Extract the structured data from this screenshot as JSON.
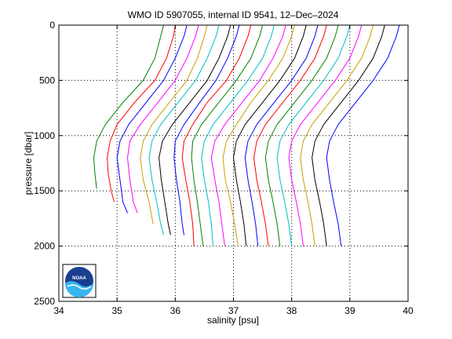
{
  "chart_data": {
    "type": "line",
    "title": "WMO ID 5907055, internal ID 9541, 12–Dec–2024",
    "xlabel": "salinity [psu]",
    "ylabel": "pressure [dbar]",
    "xlim": [
      34,
      40
    ],
    "ylim": [
      0,
      2500
    ],
    "y_reversed": true,
    "grid": true,
    "grid_style": "dotted",
    "x_ticks": [
      "34",
      "35",
      "36",
      "37",
      "38",
      "39",
      "40"
    ],
    "y_ticks": [
      "0",
      "500",
      "1000",
      "1500",
      "2000",
      "2500"
    ],
    "logo": {
      "text": "NOAA",
      "colors": [
        "#1a3f8f",
        "#38b6f0",
        "#ffffff"
      ]
    },
    "series": [
      {
        "color": "#008000",
        "points": [
          [
            35.8,
            0
          ],
          [
            35.75,
            100
          ],
          [
            35.65,
            300
          ],
          [
            35.45,
            500
          ],
          [
            35.1,
            700
          ],
          [
            34.8,
            900
          ],
          [
            34.65,
            1050
          ],
          [
            34.6,
            1200
          ],
          [
            34.62,
            1350
          ],
          [
            34.65,
            1480
          ]
        ]
      },
      {
        "color": "#ff0000",
        "points": [
          [
            36.0,
            0
          ],
          [
            35.97,
            100
          ],
          [
            35.85,
            300
          ],
          [
            35.65,
            500
          ],
          [
            35.3,
            700
          ],
          [
            35.0,
            900
          ],
          [
            34.88,
            1050
          ],
          [
            34.83,
            1200
          ],
          [
            34.85,
            1350
          ],
          [
            34.9,
            1500
          ],
          [
            34.95,
            1600
          ]
        ]
      },
      {
        "color": "#0000ff",
        "points": [
          [
            36.2,
            0
          ],
          [
            36.15,
            100
          ],
          [
            36.0,
            300
          ],
          [
            35.8,
            500
          ],
          [
            35.5,
            700
          ],
          [
            35.2,
            900
          ],
          [
            35.05,
            1050
          ],
          [
            35.0,
            1200
          ],
          [
            35.05,
            1400
          ],
          [
            35.1,
            1600
          ],
          [
            35.18,
            1700
          ]
        ]
      },
      {
        "color": "#ff00ff",
        "points": [
          [
            36.4,
            0
          ],
          [
            36.35,
            100
          ],
          [
            36.2,
            300
          ],
          [
            36.0,
            500
          ],
          [
            35.7,
            700
          ],
          [
            35.4,
            900
          ],
          [
            35.22,
            1050
          ],
          [
            35.18,
            1200
          ],
          [
            35.22,
            1400
          ],
          [
            35.28,
            1600
          ],
          [
            35.35,
            1700
          ]
        ]
      },
      {
        "color": "#c8a000",
        "points": [
          [
            36.55,
            0
          ],
          [
            36.5,
            100
          ],
          [
            36.38,
            300
          ],
          [
            36.2,
            500
          ],
          [
            35.9,
            700
          ],
          [
            35.6,
            900
          ],
          [
            35.45,
            1050
          ],
          [
            35.4,
            1200
          ],
          [
            35.45,
            1400
          ],
          [
            35.55,
            1600
          ],
          [
            35.62,
            1800
          ]
        ]
      },
      {
        "color": "#00bfbf",
        "points": [
          [
            36.75,
            0
          ],
          [
            36.7,
            100
          ],
          [
            36.55,
            300
          ],
          [
            36.35,
            500
          ],
          [
            36.05,
            700
          ],
          [
            35.75,
            900
          ],
          [
            35.6,
            1050
          ],
          [
            35.55,
            1200
          ],
          [
            35.6,
            1400
          ],
          [
            35.68,
            1600
          ],
          [
            35.75,
            1800
          ],
          [
            35.8,
            1900
          ]
        ]
      },
      {
        "color": "#000000",
        "points": [
          [
            36.95,
            0
          ],
          [
            36.9,
            100
          ],
          [
            36.75,
            300
          ],
          [
            36.55,
            500
          ],
          [
            36.25,
            700
          ],
          [
            35.95,
            900
          ],
          [
            35.78,
            1050
          ],
          [
            35.72,
            1200
          ],
          [
            35.76,
            1400
          ],
          [
            35.82,
            1600
          ],
          [
            35.88,
            1800
          ],
          [
            35.92,
            1900
          ]
        ]
      },
      {
        "color": "#0000ff",
        "points": [
          [
            37.1,
            0
          ],
          [
            37.05,
            100
          ],
          [
            36.9,
            300
          ],
          [
            36.7,
            500
          ],
          [
            36.42,
            700
          ],
          [
            36.15,
            900
          ],
          [
            36.0,
            1050
          ],
          [
            35.98,
            1200
          ],
          [
            36.02,
            1400
          ],
          [
            36.08,
            1600
          ],
          [
            36.12,
            1800
          ],
          [
            36.15,
            1900
          ]
        ]
      },
      {
        "color": "#ff0000",
        "points": [
          [
            37.3,
            0
          ],
          [
            37.25,
            100
          ],
          [
            37.1,
            300
          ],
          [
            36.88,
            500
          ],
          [
            36.55,
            700
          ],
          [
            36.3,
            900
          ],
          [
            36.15,
            1050
          ],
          [
            36.12,
            1200
          ],
          [
            36.18,
            1400
          ],
          [
            36.25,
            1600
          ],
          [
            36.3,
            1800
          ],
          [
            36.32,
            2000
          ]
        ]
      },
      {
        "color": "#008000",
        "points": [
          [
            37.5,
            0
          ],
          [
            37.45,
            100
          ],
          [
            37.3,
            300
          ],
          [
            37.05,
            500
          ],
          [
            36.75,
            700
          ],
          [
            36.45,
            900
          ],
          [
            36.3,
            1050
          ],
          [
            36.28,
            1200
          ],
          [
            36.32,
            1400
          ],
          [
            36.38,
            1600
          ],
          [
            36.43,
            1800
          ],
          [
            36.48,
            2000
          ]
        ]
      },
      {
        "color": "#00bfbf",
        "points": [
          [
            37.7,
            0
          ],
          [
            37.65,
            100
          ],
          [
            37.5,
            300
          ],
          [
            37.25,
            500
          ],
          [
            36.95,
            700
          ],
          [
            36.65,
            900
          ],
          [
            36.5,
            1050
          ],
          [
            36.45,
            1200
          ],
          [
            36.5,
            1400
          ],
          [
            36.57,
            1600
          ],
          [
            36.62,
            1800
          ],
          [
            36.65,
            2000
          ]
        ]
      },
      {
        "color": "#ff00ff",
        "points": [
          [
            37.9,
            0
          ],
          [
            37.85,
            100
          ],
          [
            37.68,
            300
          ],
          [
            37.45,
            500
          ],
          [
            37.15,
            700
          ],
          [
            36.85,
            900
          ],
          [
            36.68,
            1050
          ],
          [
            36.62,
            1200
          ],
          [
            36.68,
            1400
          ],
          [
            36.75,
            1600
          ],
          [
            36.8,
            1800
          ],
          [
            36.85,
            2000
          ]
        ]
      },
      {
        "color": "#c8a000",
        "points": [
          [
            38.05,
            0
          ],
          [
            38.0,
            100
          ],
          [
            37.85,
            300
          ],
          [
            37.6,
            500
          ],
          [
            37.3,
            700
          ],
          [
            37.05,
            900
          ],
          [
            36.88,
            1050
          ],
          [
            36.82,
            1200
          ],
          [
            36.86,
            1400
          ],
          [
            36.95,
            1600
          ],
          [
            37.02,
            1800
          ],
          [
            37.08,
            2000
          ]
        ]
      },
      {
        "color": "#000000",
        "points": [
          [
            38.25,
            0
          ],
          [
            38.2,
            100
          ],
          [
            38.05,
            300
          ],
          [
            37.8,
            500
          ],
          [
            37.5,
            700
          ],
          [
            37.2,
            900
          ],
          [
            37.05,
            1050
          ],
          [
            37.0,
            1200
          ],
          [
            37.05,
            1400
          ],
          [
            37.12,
            1600
          ],
          [
            37.18,
            1800
          ],
          [
            37.22,
            2000
          ]
        ]
      },
      {
        "color": "#0000ff",
        "points": [
          [
            38.45,
            0
          ],
          [
            38.4,
            100
          ],
          [
            38.25,
            300
          ],
          [
            38.0,
            500
          ],
          [
            37.7,
            700
          ],
          [
            37.4,
            900
          ],
          [
            37.25,
            1050
          ],
          [
            37.2,
            1200
          ],
          [
            37.25,
            1400
          ],
          [
            37.32,
            1600
          ],
          [
            37.38,
            1800
          ],
          [
            37.42,
            2000
          ]
        ]
      },
      {
        "color": "#ff0000",
        "points": [
          [
            38.6,
            0
          ],
          [
            38.55,
            100
          ],
          [
            38.4,
            300
          ],
          [
            38.15,
            500
          ],
          [
            37.85,
            700
          ],
          [
            37.55,
            900
          ],
          [
            37.4,
            1050
          ],
          [
            37.35,
            1200
          ],
          [
            37.4,
            1400
          ],
          [
            37.48,
            1600
          ],
          [
            37.55,
            1800
          ],
          [
            37.6,
            2000
          ]
        ]
      },
      {
        "color": "#008000",
        "points": [
          [
            38.8,
            0
          ],
          [
            38.75,
            100
          ],
          [
            38.6,
            300
          ],
          [
            38.35,
            500
          ],
          [
            38.05,
            700
          ],
          [
            37.75,
            900
          ],
          [
            37.6,
            1050
          ],
          [
            37.55,
            1200
          ],
          [
            37.6,
            1400
          ],
          [
            37.68,
            1600
          ],
          [
            37.75,
            1800
          ],
          [
            37.8,
            2000
          ]
        ]
      },
      {
        "color": "#00bfbf",
        "points": [
          [
            39.0,
            0
          ],
          [
            38.95,
            100
          ],
          [
            38.8,
            300
          ],
          [
            38.55,
            500
          ],
          [
            38.25,
            700
          ],
          [
            37.95,
            900
          ],
          [
            37.8,
            1050
          ],
          [
            37.75,
            1200
          ],
          [
            37.8,
            1400
          ],
          [
            37.88,
            1600
          ],
          [
            37.95,
            1800
          ],
          [
            38.0,
            2000
          ]
        ]
      },
      {
        "color": "#ff00ff",
        "points": [
          [
            39.2,
            0
          ],
          [
            39.15,
            100
          ],
          [
            39.0,
            300
          ],
          [
            38.75,
            500
          ],
          [
            38.45,
            700
          ],
          [
            38.15,
            900
          ],
          [
            38.0,
            1050
          ],
          [
            37.95,
            1200
          ],
          [
            38.0,
            1400
          ],
          [
            38.08,
            1600
          ],
          [
            38.15,
            1800
          ],
          [
            38.2,
            2000
          ]
        ]
      },
      {
        "color": "#c8a000",
        "points": [
          [
            39.4,
            0
          ],
          [
            39.35,
            100
          ],
          [
            39.2,
            300
          ],
          [
            38.95,
            500
          ],
          [
            38.65,
            700
          ],
          [
            38.35,
            900
          ],
          [
            38.2,
            1050
          ],
          [
            38.15,
            1200
          ],
          [
            38.2,
            1400
          ],
          [
            38.28,
            1600
          ],
          [
            38.35,
            1800
          ],
          [
            38.4,
            2000
          ]
        ]
      },
      {
        "color": "#000000",
        "points": [
          [
            39.6,
            0
          ],
          [
            39.55,
            100
          ],
          [
            39.4,
            300
          ],
          [
            39.15,
            500
          ],
          [
            38.85,
            700
          ],
          [
            38.55,
            900
          ],
          [
            38.4,
            1050
          ],
          [
            38.35,
            1200
          ],
          [
            38.4,
            1400
          ],
          [
            38.48,
            1600
          ],
          [
            38.55,
            1800
          ],
          [
            38.6,
            2000
          ]
        ]
      },
      {
        "color": "#0000ff",
        "points": [
          [
            39.85,
            0
          ],
          [
            39.8,
            100
          ],
          [
            39.65,
            300
          ],
          [
            39.4,
            500
          ],
          [
            39.1,
            700
          ],
          [
            38.8,
            900
          ],
          [
            38.65,
            1050
          ],
          [
            38.6,
            1200
          ],
          [
            38.65,
            1400
          ],
          [
            38.72,
            1600
          ],
          [
            38.8,
            1800
          ],
          [
            38.85,
            2000
          ]
        ]
      }
    ]
  }
}
